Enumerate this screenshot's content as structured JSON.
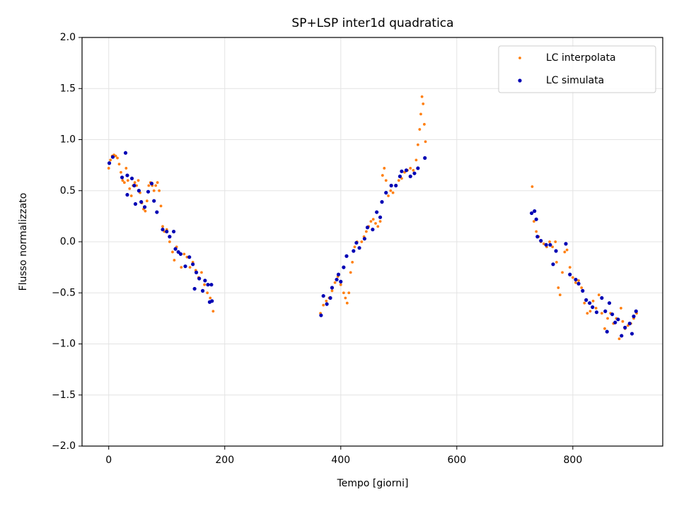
{
  "chart_data": {
    "type": "scatter",
    "title": "SP+LSP inter1d quadratica",
    "xlabel": "Tempo [giorni]",
    "ylabel": "Flusso normalizzato",
    "xlim": [
      -46,
      955
    ],
    "ylim": [
      -2,
      2
    ],
    "xticks": [
      0,
      200,
      400,
      600,
      800
    ],
    "yticks": [
      {
        "value": -2,
        "label": "−2.0"
      },
      {
        "value": -1.5,
        "label": "−1.5"
      },
      {
        "value": -1,
        "label": "−1.0"
      },
      {
        "value": -0.5,
        "label": "−0.5"
      },
      {
        "value": 0,
        "label": "0.0"
      },
      {
        "value": 0.5,
        "label": "0.5"
      },
      {
        "value": 1,
        "label": "1.0"
      },
      {
        "value": 1.5,
        "label": "1.5"
      },
      {
        "value": 2,
        "label": "2.0"
      }
    ],
    "grid": true,
    "legend": "upper right",
    "series": [
      {
        "name": "LC interpolata",
        "color": "#ff7f0e",
        "x": [
          0,
          3,
          6,
          9,
          12,
          15,
          18,
          21,
          24,
          27,
          30,
          33,
          36,
          39,
          42,
          45,
          48,
          51,
          54,
          57,
          60,
          63,
          66,
          69,
          72,
          75,
          78,
          81,
          84,
          87,
          90,
          93,
          96,
          100,
          105,
          110,
          113,
          117,
          120,
          125,
          130,
          135,
          140,
          145,
          150,
          155,
          160,
          165,
          170,
          175,
          180,
          365,
          370,
          375,
          380,
          385,
          390,
          395,
          400,
          405,
          408,
          411,
          414,
          417,
          420,
          424,
          428,
          432,
          436,
          440,
          444,
          448,
          452,
          456,
          460,
          464,
          468,
          472,
          475,
          478,
          482,
          486,
          490,
          495,
          500,
          505,
          510,
          515,
          520,
          525,
          530,
          533,
          536,
          538,
          540,
          542,
          544,
          546,
          730,
          733,
          737,
          741,
          745,
          750,
          755,
          760,
          765,
          770,
          772,
          775,
          778,
          782,
          786,
          790,
          795,
          800,
          805,
          810,
          815,
          820,
          825,
          830,
          835,
          840,
          845,
          850,
          855,
          860,
          865,
          870,
          875,
          880,
          883,
          886,
          890,
          895,
          900,
          905,
          910
        ],
        "values": [
          0.72,
          0.8,
          0.84,
          0.85,
          0.84,
          0.82,
          0.76,
          0.68,
          0.6,
          0.58,
          0.72,
          0.6,
          0.52,
          0.45,
          0.55,
          0.58,
          0.55,
          0.6,
          0.48,
          0.38,
          0.32,
          0.3,
          0.4,
          0.55,
          0.58,
          0.55,
          0.5,
          0.55,
          0.58,
          0.5,
          0.35,
          0.15,
          0.1,
          0.12,
          0.0,
          -0.1,
          -0.18,
          -0.05,
          -0.1,
          -0.25,
          -0.12,
          -0.15,
          -0.25,
          -0.2,
          -0.28,
          -0.35,
          -0.3,
          -0.42,
          -0.5,
          -0.55,
          -0.68,
          -0.7,
          -0.62,
          -0.58,
          -0.55,
          -0.48,
          -0.4,
          -0.34,
          -0.42,
          -0.5,
          -0.55,
          -0.6,
          -0.5,
          -0.3,
          -0.2,
          -0.05,
          0.0,
          -0.06,
          0.0,
          0.05,
          0.1,
          0.15,
          0.2,
          0.22,
          0.18,
          0.15,
          0.2,
          0.65,
          0.72,
          0.6,
          0.45,
          0.5,
          0.48,
          0.55,
          0.6,
          0.62,
          0.68,
          0.7,
          0.72,
          0.7,
          0.8,
          0.95,
          1.1,
          1.25,
          1.42,
          1.35,
          1.15,
          0.98,
          0.54,
          0.2,
          0.1,
          0.05,
          0.0,
          -0.02,
          -0.05,
          0.0,
          -0.05,
          0.0,
          -0.2,
          -0.45,
          -0.52,
          -0.3,
          -0.1,
          -0.08,
          -0.25,
          -0.35,
          -0.4,
          -0.38,
          -0.45,
          -0.6,
          -0.7,
          -0.68,
          -0.58,
          -0.65,
          -0.52,
          -0.7,
          -0.85,
          -0.75,
          -0.7,
          -0.8,
          -0.75,
          -0.95,
          -0.65,
          -0.78,
          -0.85,
          -0.82,
          -0.8,
          -0.75,
          -0.7
        ]
      },
      {
        "name": "LC simulata",
        "color": "#0000b4",
        "x": [
          1,
          7,
          29,
          23,
          32,
          32,
          40,
          44,
          46,
          52,
          56,
          62,
          68,
          74,
          78,
          83,
          93,
          100,
          105,
          112,
          115,
          120,
          124,
          132,
          139,
          145,
          148,
          151,
          156,
          162,
          166,
          171,
          174,
          177,
          178,
          366,
          370,
          376,
          382,
          385,
          393,
          396,
          400,
          405,
          410,
          422,
          427,
          432,
          441,
          446,
          455,
          462,
          468,
          471,
          478,
          487,
          495,
          502,
          505,
          513,
          520,
          527,
          533,
          545,
          729,
          734,
          737,
          739,
          745,
          754,
          761,
          766,
          771,
          788,
          795,
          805,
          810,
          817,
          823,
          829,
          834,
          841,
          850,
          856,
          859,
          863,
          868,
          873,
          878,
          884,
          890,
          898,
          902,
          905,
          909
        ],
        "values": [
          0.77,
          0.83,
          0.87,
          0.63,
          0.65,
          0.46,
          0.62,
          0.55,
          0.37,
          0.5,
          0.39,
          0.34,
          0.49,
          0.57,
          0.4,
          0.29,
          0.12,
          0.1,
          0.05,
          0.1,
          -0.07,
          -0.1,
          -0.12,
          -0.24,
          -0.15,
          -0.22,
          -0.46,
          -0.3,
          -0.36,
          -0.48,
          -0.38,
          -0.42,
          -0.59,
          -0.42,
          -0.58,
          -0.72,
          -0.53,
          -0.61,
          -0.55,
          -0.45,
          -0.37,
          -0.32,
          -0.39,
          -0.25,
          -0.14,
          -0.09,
          -0.01,
          -0.06,
          0.03,
          0.14,
          0.12,
          0.29,
          0.24,
          0.39,
          0.48,
          0.55,
          0.55,
          0.64,
          0.69,
          0.7,
          0.64,
          0.67,
          0.72,
          0.82,
          0.28,
          0.3,
          0.22,
          0.05,
          0.01,
          -0.03,
          -0.03,
          -0.22,
          -0.09,
          -0.02,
          -0.32,
          -0.37,
          -0.41,
          -0.48,
          -0.57,
          -0.6,
          -0.64,
          -0.69,
          -0.55,
          -0.68,
          -0.88,
          -0.6,
          -0.71,
          -0.79,
          -0.76,
          -0.92,
          -0.84,
          -0.8,
          -0.9,
          -0.73,
          -0.68
        ]
      }
    ]
  }
}
